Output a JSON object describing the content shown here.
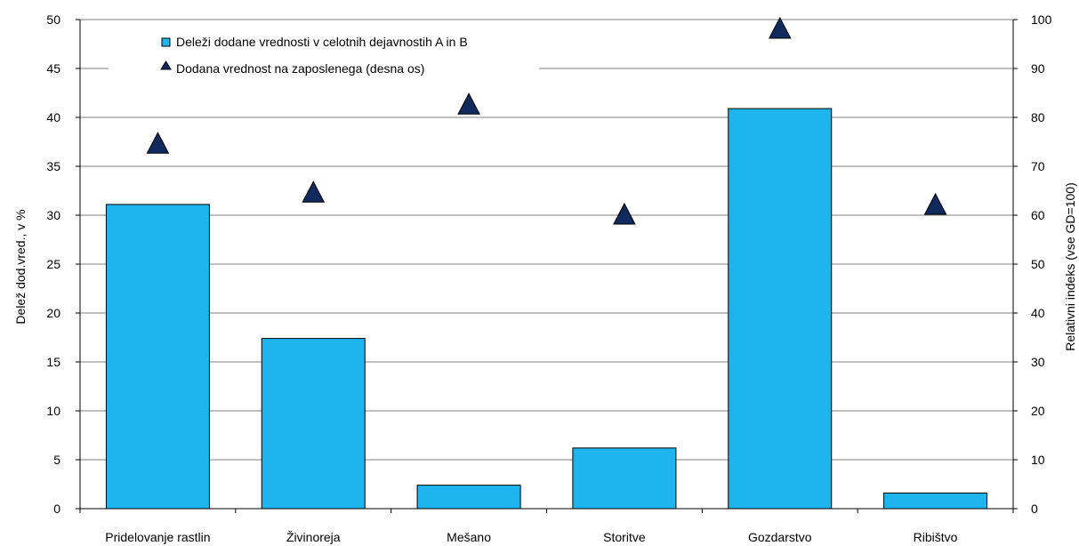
{
  "chart_data": {
    "type": "bar",
    "categories": [
      "Pridelovanje rastlin",
      "Živinoreja",
      "Mešano",
      "Storitve",
      "Gozdarstvo",
      "Ribištvo"
    ],
    "series": [
      {
        "name": "Deleži dodane vrednosti v celotnih dejavnostih A in B",
        "type": "bar",
        "axis": "left",
        "color": "#1eb4ee",
        "values": [
          31.1,
          17.4,
          2.4,
          6.2,
          40.9,
          1.6
        ]
      },
      {
        "name": "Dodana vrednost na zaposlenega (desna os)",
        "type": "scatter",
        "marker": "triangle",
        "axis": "right",
        "color": "#102a5e",
        "values": [
          74.5,
          64.5,
          82.5,
          60,
          98,
          62
        ]
      }
    ],
    "ylabel": "Delež dod.vred., v %",
    "y2label": "Relativni indeks (vse GD=100)",
    "ylim": [
      0,
      50
    ],
    "y2lim": [
      0,
      100
    ],
    "yticks": [
      "0",
      "5",
      "10",
      "15",
      "20",
      "25",
      "30",
      "35",
      "40",
      "45",
      "50"
    ],
    "y2ticks": [
      "0",
      "10",
      "20",
      "30",
      "40",
      "50",
      "60",
      "70",
      "80",
      "90",
      "100"
    ],
    "grid": true,
    "legend_position": "top-left"
  }
}
